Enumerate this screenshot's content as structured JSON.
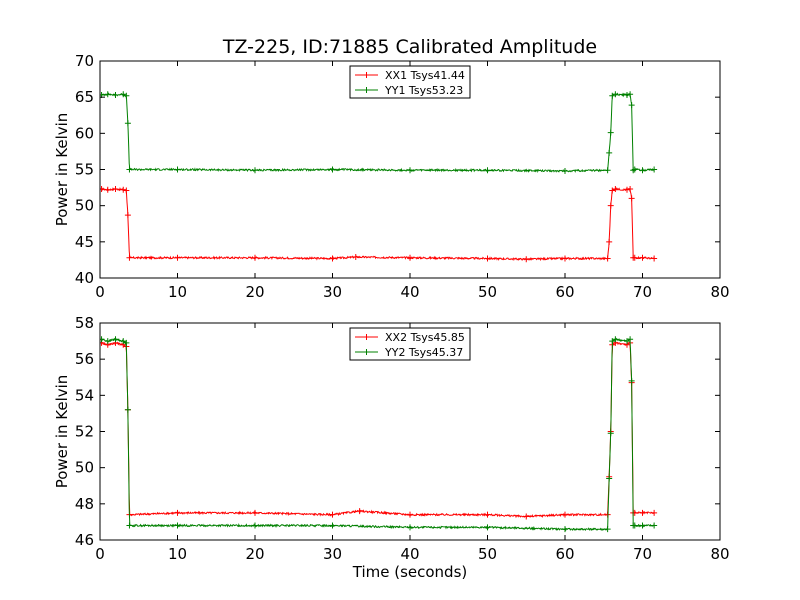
{
  "figure": {
    "title": "TZ-225, ID:71885 Calibrated Amplitude"
  },
  "chart_data": [
    {
      "type": "line",
      "title": "TZ-225, ID:71885 Calibrated Amplitude",
      "xlabel": "",
      "ylabel": "Power in Kelvin",
      "xlim": [
        0,
        80
      ],
      "ylim": [
        40,
        70
      ],
      "xticks": [
        0,
        10,
        20,
        30,
        40,
        50,
        60,
        70,
        80
      ],
      "yticks": [
        40,
        45,
        50,
        55,
        60,
        65,
        70
      ],
      "grid": false,
      "legend": "top-center",
      "series": [
        {
          "name": "XX1 Tsys41.44",
          "color": "#ff0000",
          "marker": "+",
          "x": [
            0.2,
            1,
            2,
            3,
            3.4,
            3.6,
            3.8,
            10,
            20,
            30,
            33,
            40,
            50,
            55,
            60,
            65.5,
            65.7,
            65.9,
            66.1,
            66.5,
            68,
            68.4,
            68.6,
            68.8,
            69,
            70,
            71.5
          ],
          "y": [
            52.3,
            52.2,
            52.3,
            52.2,
            52.1,
            48.7,
            42.8,
            42.8,
            42.8,
            42.7,
            42.9,
            42.8,
            42.7,
            42.6,
            42.7,
            42.7,
            45.0,
            50.0,
            52.1,
            52.3,
            52.2,
            52.3,
            51.0,
            42.8,
            42.8,
            42.8,
            42.7
          ]
        },
        {
          "name": "YY1 Tsys53.23",
          "color": "#008000",
          "marker": "+",
          "x": [
            0.2,
            1,
            2,
            3,
            3.4,
            3.6,
            3.8,
            10,
            20,
            30,
            40,
            50,
            60,
            65.5,
            65.7,
            65.9,
            66.1,
            66.5,
            68,
            68.4,
            68.6,
            68.8,
            69,
            70,
            71.5
          ],
          "y": [
            65.3,
            65.4,
            65.3,
            65.4,
            65.2,
            61.4,
            55.0,
            55.0,
            54.9,
            55.0,
            54.9,
            54.9,
            54.8,
            54.9,
            57.3,
            60.1,
            65.2,
            65.4,
            65.3,
            65.4,
            63.9,
            54.9,
            55.0,
            54.9,
            55.0
          ]
        }
      ]
    },
    {
      "type": "line",
      "title": "",
      "xlabel": "Time (seconds)",
      "ylabel": "Power in Kelvin",
      "xlim": [
        0,
        80
      ],
      "ylim": [
        46,
        58
      ],
      "xticks": [
        0,
        10,
        20,
        30,
        40,
        50,
        60,
        70,
        80
      ],
      "yticks": [
        46,
        48,
        50,
        52,
        54,
        56,
        58
      ],
      "grid": false,
      "legend": "top-center",
      "series": [
        {
          "name": "XX2 Tsys45.85",
          "color": "#ff0000",
          "marker": "+",
          "x": [
            0.2,
            1,
            2,
            3,
            3.4,
            3.6,
            3.8,
            10,
            20,
            30,
            33.5,
            40,
            50,
            55,
            60,
            65.5,
            65.7,
            65.9,
            66.1,
            66.5,
            68,
            68.4,
            68.6,
            68.8,
            69,
            70,
            71.5
          ],
          "y": [
            56.9,
            56.8,
            56.9,
            56.8,
            56.7,
            53.2,
            47.4,
            47.5,
            47.5,
            47.4,
            47.6,
            47.4,
            47.4,
            47.3,
            47.4,
            47.4,
            49.5,
            52.0,
            56.8,
            56.9,
            56.8,
            56.9,
            54.7,
            47.5,
            47.5,
            47.5,
            47.5
          ]
        },
        {
          "name": "YY2 Tsys45.37",
          "color": "#008000",
          "marker": "+",
          "x": [
            0.2,
            1,
            2,
            3,
            3.4,
            3.6,
            3.8,
            10,
            20,
            30,
            40,
            50,
            60,
            65.5,
            65.7,
            65.9,
            66.1,
            66.5,
            68,
            68.4,
            68.6,
            68.8,
            69,
            70,
            71.5
          ],
          "y": [
            57.1,
            57.0,
            57.1,
            57.0,
            56.9,
            53.2,
            46.8,
            46.8,
            46.8,
            46.8,
            46.7,
            46.7,
            46.6,
            46.6,
            49.4,
            51.9,
            57.0,
            57.1,
            57.0,
            57.1,
            54.8,
            46.8,
            46.8,
            46.8,
            46.8
          ]
        }
      ]
    }
  ]
}
